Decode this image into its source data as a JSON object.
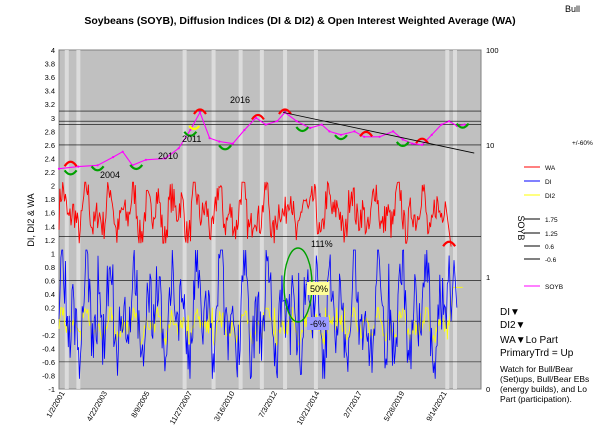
{
  "chart_data": {
    "type": "line",
    "title": "Soybeans (SOYB), Diffusion Indices (DI & DI2) & Open Interest Weighted  Average (WA)",
    "corner_label": "Bull",
    "ylabel_left": "DI, DI2 & WA",
    "ylabel_right": "SOYB",
    "ylim_left": [
      -1,
      4
    ],
    "left_ticks": [
      "4",
      "3.8",
      "3.6",
      "3.4",
      "3.2",
      "3",
      "2.8",
      "2.6",
      "2.4",
      "2.2",
      "2",
      "1.8",
      "1.6",
      "1.4",
      "1.2",
      "1",
      "0.8",
      "0.6",
      "0.4",
      "0.2",
      "0",
      "-0.2",
      "-0.4",
      "-0.6",
      "-0.8",
      "-1"
    ],
    "right_ticks": [
      "100",
      "10",
      "1",
      "0"
    ],
    "right_scale": "log",
    "x_tick_labels": [
      "1/2/2001",
      "4/22/2003",
      "8/9/2005",
      "11/27/2007",
      "3/16/2010",
      "7/3/2012",
      "10/21/2014",
      "2/7/2017",
      "5/28/2019",
      "9/14/2021"
    ],
    "reference_lines": [
      3.1,
      2.95,
      2.9,
      2.6,
      1.25,
      0.6,
      0,
      -0.6
    ],
    "trendline": {
      "from": {
        "x": 2012.6,
        "y": 3.08
      },
      "to": {
        "x": 2022.5,
        "y": 2.48
      }
    },
    "series": [
      {
        "name": "WA",
        "color": "#ff0000",
        "band": [
          1.2,
          2.0
        ],
        "end_value": 1.1
      },
      {
        "name": "DI",
        "color": "#0000ff",
        "band": [
          -0.8,
          1.0
        ],
        "end_value": 0.9
      },
      {
        "name": "DI2",
        "color": "#ffff00",
        "band": [
          -0.3,
          0.15
        ],
        "end_value": 0.5
      },
      {
        "name": "SOYB",
        "color": "#ff00ff",
        "points": [
          [
            2001.0,
            2.25
          ],
          [
            2002.0,
            2.28
          ],
          [
            2003.0,
            2.3
          ],
          [
            2003.8,
            2.42
          ],
          [
            2004.3,
            2.5
          ],
          [
            2004.8,
            2.3
          ],
          [
            2005.5,
            2.38
          ],
          [
            2006.5,
            2.4
          ],
          [
            2007.2,
            2.55
          ],
          [
            2007.8,
            2.82
          ],
          [
            2008.3,
            3.08
          ],
          [
            2008.8,
            2.7
          ],
          [
            2009.3,
            2.65
          ],
          [
            2010.0,
            2.62
          ],
          [
            2010.6,
            2.82
          ],
          [
            2011.2,
            3.0
          ],
          [
            2011.7,
            2.9
          ],
          [
            2012.3,
            2.95
          ],
          [
            2012.7,
            3.08
          ],
          [
            2013.3,
            2.95
          ],
          [
            2014.0,
            2.85
          ],
          [
            2014.6,
            2.9
          ],
          [
            2015.0,
            2.8
          ],
          [
            2015.6,
            2.75
          ],
          [
            2016.3,
            2.8
          ],
          [
            2016.8,
            2.72
          ],
          [
            2017.6,
            2.72
          ],
          [
            2018.3,
            2.8
          ],
          [
            2018.8,
            2.68
          ],
          [
            2019.3,
            2.62
          ],
          [
            2019.8,
            2.6
          ],
          [
            2020.3,
            2.75
          ],
          [
            2020.8,
            2.9
          ],
          [
            2021.2,
            2.95
          ],
          [
            2021.6,
            2.88
          ],
          [
            2022.0,
            2.9
          ]
        ]
      }
    ],
    "annotations": [
      "2004",
      "2010",
      "2011",
      "2016",
      "111%",
      "50%",
      "-6%"
    ],
    "legend": [
      "+/-60%",
      "WA",
      "DI",
      "DI2",
      "1.75",
      "1.25",
      "0.6",
      "-0.6",
      "SOYB"
    ]
  },
  "side_notes": {
    "di": "DI▼",
    "di2": "DI2▼",
    "wa": "WA▼Lo Part",
    "primary": "PrimaryTrd = Up",
    "watch": [
      "Watch for Bull/Bear",
      "(Set)ups, Bull/Bear EBs",
      "(energy builds), and Lo",
      "Part (participation)."
    ]
  },
  "colors": {
    "plot_bg": "#c0c0c0",
    "wa": "#ff0000",
    "di": "#0000ff",
    "di2": "#ffff00",
    "soyb": "#ff00ff",
    "marker_green": "#00a000",
    "ellipse": "#00a000",
    "box_yellow": "#ffff99",
    "box_blue": "#9999ff"
  }
}
